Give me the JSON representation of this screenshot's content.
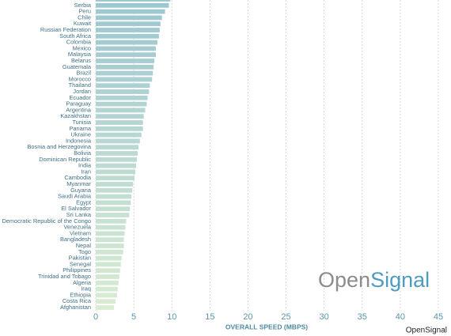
{
  "chart_data": {
    "type": "barh",
    "categories": [
      null,
      "Serbia",
      "Peru",
      "Chile",
      "Kuwait",
      "Russian Federation",
      "South Africa",
      "Colombia",
      "Mexico",
      "Malaysia",
      "Belarus",
      "Guatemala",
      "Brazil",
      "Morocco",
      "Thailand",
      "Jordan",
      "Ecuador",
      "Paraguay",
      "Argentina",
      "Kazakhstan",
      "Tunisia",
      "Panama",
      "Ukraine",
      "Indonesia",
      "Bosnia and Herzegovina",
      "Bolivia",
      "Dominican Republic",
      "India",
      "Iran",
      "Cambodia",
      "Myanmar",
      "Guyana",
      "Saudi Arabia",
      "Egypt",
      "El Salvador",
      "Sri Lanka",
      "Democratic Republic of the Congo",
      "Venezuela",
      "Vietnam",
      "Bangladesh",
      "Nepal",
      "Togo",
      "Pakistan",
      "Senegal",
      "Philippines",
      "Trinidad and Tobago",
      "Algeria",
      "Iraq",
      "Ethiopia",
      "Costa Rica",
      "Afghanistan"
    ],
    "values": [
      9.8,
      9.6,
      9.1,
      8.7,
      8.5,
      8.4,
      8.3,
      8.1,
      7.9,
      7.9,
      7.7,
      7.6,
      7.5,
      7.4,
      7.1,
      7.0,
      6.8,
      6.7,
      6.5,
      6.3,
      6.2,
      6.2,
      6.0,
      5.8,
      5.6,
      5.5,
      5.4,
      5.3,
      5.2,
      5.1,
      4.9,
      4.8,
      4.7,
      4.6,
      4.5,
      4.4,
      4.0,
      3.9,
      3.8,
      3.7,
      3.7,
      3.6,
      3.4,
      3.3,
      3.2,
      3.1,
      3.0,
      2.9,
      2.8,
      2.6,
      2.4
    ],
    "colors": [
      "#9cc6d2",
      "#d9ecd2"
    ],
    "xlabel": "OVERALL SPEED (MBPS)",
    "xlim": [
      0,
      45
    ],
    "xticks": [
      0,
      5,
      10,
      15,
      20,
      25,
      30,
      35,
      40,
      45
    ],
    "grid": true,
    "watermark": [
      "Open",
      "Signal"
    ],
    "credit": "OpenSignal"
  }
}
